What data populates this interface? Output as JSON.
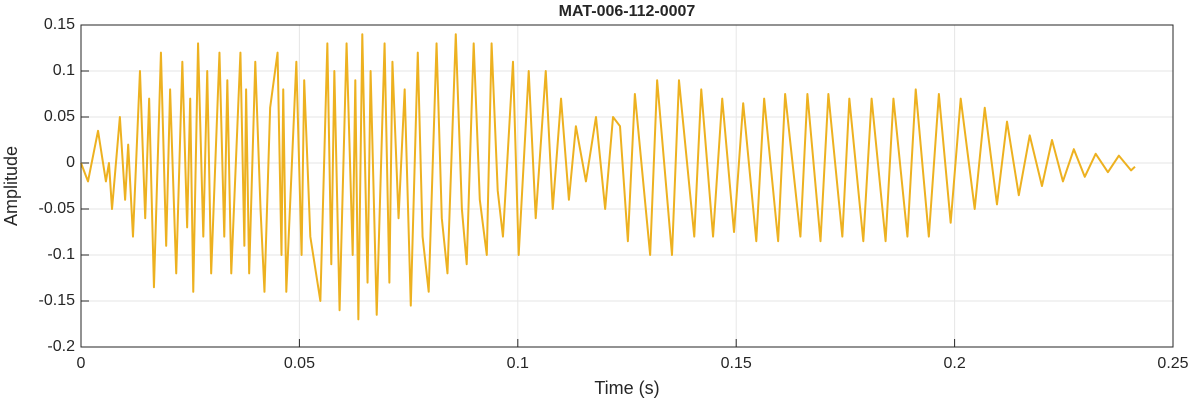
{
  "chart_data": {
    "type": "line",
    "title": "MAT-006-112-0007",
    "xlabel": "Time (s)",
    "ylabel": "Amplitude",
    "xlim": [
      0,
      0.25
    ],
    "ylim": [
      -0.2,
      0.15
    ],
    "xticks": [
      0,
      0.05,
      0.1,
      0.15,
      0.2,
      0.25
    ],
    "yticks": [
      -0.2,
      -0.15,
      -0.1,
      -0.05,
      0,
      0.05,
      0.1,
      0.15
    ],
    "grid": true,
    "x": [
      0,
      0.0016,
      0.0039,
      0.0057,
      0.0064,
      0.0071,
      0.0089,
      0.0101,
      0.0108,
      0.0119,
      0.0135,
      0.0147,
      0.0156,
      0.0167,
      0.0183,
      0.0195,
      0.0204,
      0.0218,
      0.0232,
      0.0243,
      0.025,
      0.0257,
      0.0268,
      0.028,
      0.0289,
      0.0298,
      0.0317,
      0.0328,
      0.0335,
      0.0344,
      0.0365,
      0.0374,
      0.0378,
      0.0385,
      0.0399,
      0.0411,
      0.042,
      0.0433,
      0.045,
      0.0459,
      0.0463,
      0.047,
      0.0493,
      0.0505,
      0.0511,
      0.0525,
      0.0548,
      0.0564,
      0.0573,
      0.058,
      0.0592,
      0.0608,
      0.0622,
      0.0628,
      0.0635,
      0.0644,
      0.0656,
      0.0663,
      0.0677,
      0.0695,
      0.0706,
      0.0713,
      0.0727,
      0.0741,
      0.0755,
      0.0771,
      0.0782,
      0.0796,
      0.0814,
      0.0826,
      0.0839,
      0.0858,
      0.0872,
      0.0883,
      0.0899,
      0.0913,
      0.0929,
      0.094,
      0.0954,
      0.0966,
      0.0989,
      0.1002,
      0.1025,
      0.1041,
      0.1064,
      0.108,
      0.1099,
      0.1117,
      0.1133,
      0.1156,
      0.1179,
      0.12,
      0.1218,
      0.1234,
      0.1252,
      0.1268,
      0.1303,
      0.1319,
      0.1353,
      0.1369,
      0.1404,
      0.142,
      0.1447,
      0.1468,
      0.1495,
      0.1516,
      0.1546,
      0.1564,
      0.1596,
      0.1612,
      0.1647,
      0.1663,
      0.1693,
      0.1711,
      0.1743,
      0.1759,
      0.1791,
      0.181,
      0.1842,
      0.186,
      0.1892,
      0.1911,
      0.1941,
      0.1964,
      0.1991,
      0.2014,
      0.2046,
      0.2069,
      0.2097,
      0.212,
      0.2147,
      0.2172,
      0.22,
      0.2223,
      0.2248,
      0.2273,
      0.2298,
      0.2323,
      0.2351,
      0.2376,
      0.2404,
      0.2413
    ],
    "series": [
      {
        "color": "#EDB120",
        "values": [
          0,
          -0.02,
          0.035,
          -0.02,
          0,
          -0.05,
          0.05,
          -0.04,
          0.02,
          -0.08,
          0.1,
          -0.06,
          0.07,
          -0.135,
          0.12,
          -0.09,
          0.08,
          -0.12,
          0.11,
          -0.07,
          0.07,
          -0.14,
          0.13,
          -0.08,
          0.1,
          -0.12,
          0.12,
          -0.08,
          0.09,
          -0.12,
          0.12,
          -0.09,
          0.08,
          -0.12,
          0.11,
          -0.05,
          -0.14,
          0.06,
          0.12,
          -0.1,
          0.08,
          -0.14,
          0.11,
          -0.1,
          0.09,
          -0.08,
          -0.15,
          0.13,
          -0.11,
          0.1,
          -0.16,
          0.13,
          -0.1,
          0.09,
          -0.17,
          0.14,
          -0.13,
          0.1,
          -0.165,
          0.13,
          -0.13,
          0.11,
          -0.06,
          0.08,
          -0.155,
          0.12,
          -0.08,
          -0.14,
          0.13,
          -0.06,
          -0.12,
          0.14,
          -0.05,
          -0.11,
          0.13,
          -0.04,
          -0.1,
          0.13,
          -0.03,
          -0.08,
          0.11,
          -0.1,
          0.1,
          -0.06,
          0.1,
          -0.05,
          0.07,
          -0.04,
          0.04,
          -0.02,
          0.05,
          -0.05,
          0.05,
          0.04,
          -0.085,
          0.075,
          -0.1,
          0.09,
          -0.1,
          0.09,
          -0.08,
          0.08,
          -0.08,
          0.07,
          -0.075,
          0.065,
          -0.085,
          0.07,
          -0.085,
          0.075,
          -0.08,
          0.075,
          -0.085,
          0.075,
          -0.08,
          0.07,
          -0.085,
          0.07,
          -0.085,
          0.07,
          -0.08,
          0.08,
          -0.08,
          0.075,
          -0.065,
          0.07,
          -0.05,
          0.06,
          -0.045,
          0.045,
          -0.035,
          0.03,
          -0.025,
          0.025,
          -0.02,
          0.015,
          -0.015,
          0.01,
          -0.01,
          0.008,
          -0.008,
          -0.004
        ]
      }
    ]
  }
}
